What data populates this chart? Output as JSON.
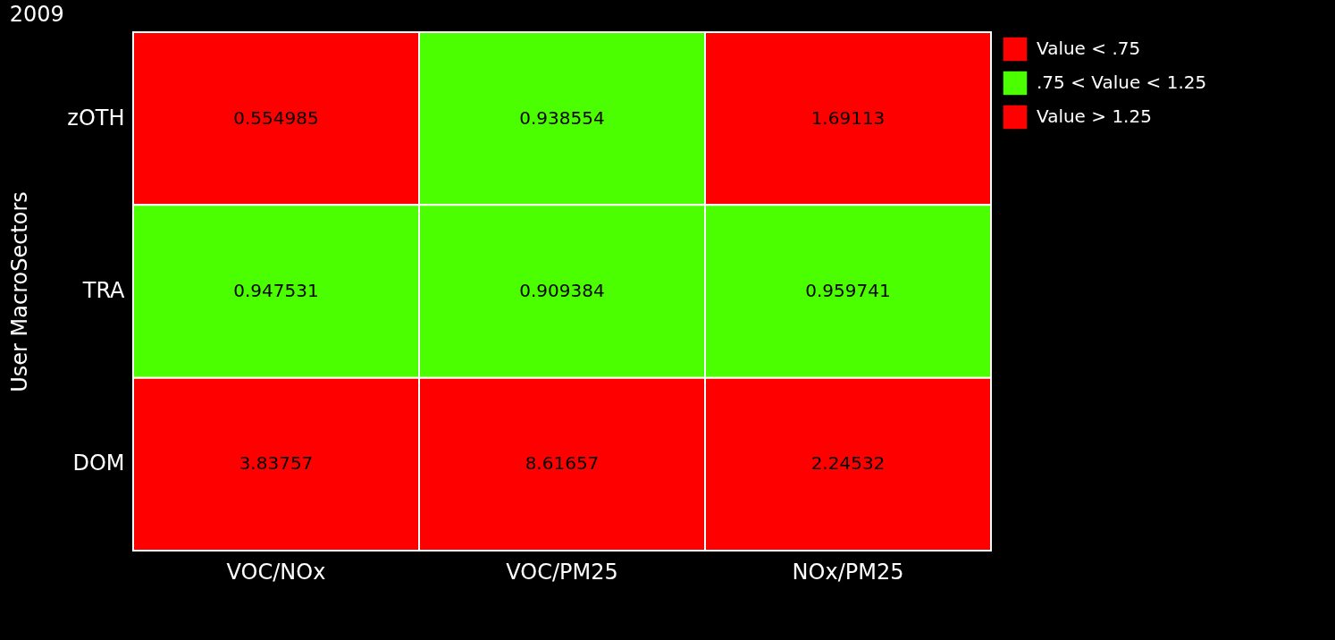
{
  "chart_data": {
    "type": "heatmap",
    "title": "2009",
    "ylabel": "User MacroSectors",
    "categories": [
      "VOC/NOx",
      "VOC/PM25",
      "NOx/PM25"
    ],
    "y_categories": [
      "zOTH",
      "TRA",
      "DOM"
    ],
    "cells": [
      [
        0.554985,
        0.938554,
        1.69113
      ],
      [
        0.947531,
        0.909384,
        0.959741
      ],
      [
        3.83757,
        8.61657,
        2.24532
      ]
    ],
    "data_labels": true,
    "annotations": [
      "Value < .75",
      ".75 < Value < 1.25",
      "Value > 1.25"
    ],
    "colors": [
      [
        "#ff0000",
        "#4cff00",
        "#ff0000"
      ],
      [
        "#4cff00",
        "#4cff00",
        "#4cff00"
      ],
      [
        "#ff0000",
        "#ff0000",
        "#ff0000"
      ]
    ]
  }
}
